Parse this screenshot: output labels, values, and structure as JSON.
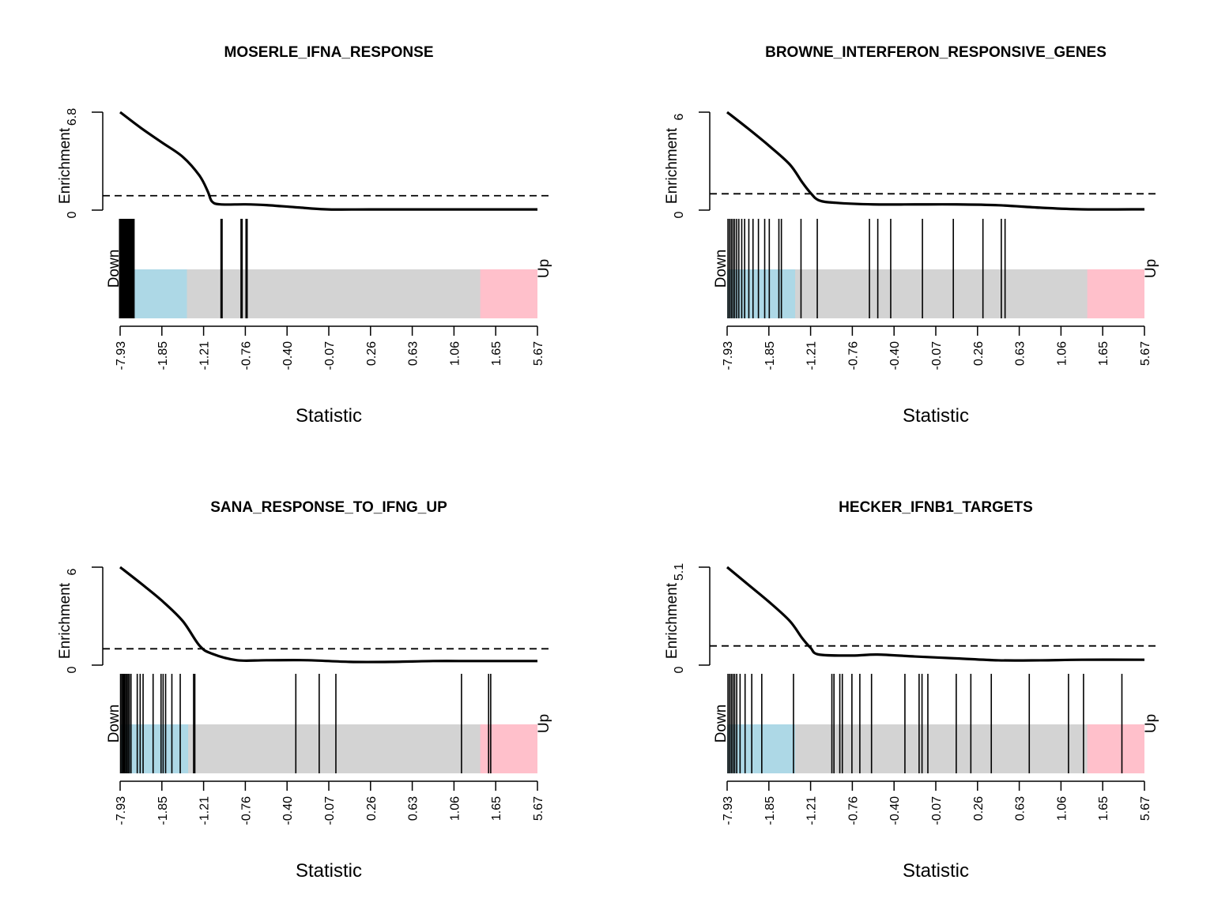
{
  "chart_data": [
    {
      "type": "line",
      "title": "MOSERLE_IFNA_RESPONSE",
      "xlabel": "Statistic",
      "ylabel": "Enrichment",
      "ytick_labels": [
        "0",
        "6.8"
      ],
      "ylim": [
        0,
        6.8
      ],
      "xtick_labels": [
        "-7.93",
        "-1.85",
        "-1.21",
        "-0.76",
        "-0.40",
        "-0.07",
        "0.26",
        "0.63",
        "1.06",
        "1.65",
        "5.67"
      ],
      "reference_line": 1.0,
      "down_label": "Down",
      "up_label": "Up",
      "down_region_end": 0.16,
      "up_region_start": 0.863,
      "curve": [
        [
          0.0,
          6.8
        ],
        [
          0.05,
          5.7
        ],
        [
          0.1,
          4.7
        ],
        [
          0.15,
          3.7
        ],
        [
          0.19,
          2.4
        ],
        [
          0.21,
          1.3
        ],
        [
          0.22,
          0.6
        ],
        [
          0.24,
          0.4
        ],
        [
          0.3,
          0.4
        ],
        [
          0.35,
          0.35
        ],
        [
          0.42,
          0.2
        ],
        [
          0.5,
          0.05
        ],
        [
          0.6,
          0.05
        ],
        [
          0.8,
          0.05
        ],
        [
          1.0,
          0.05
        ]
      ],
      "gene_positions": [
        0.0,
        0.004,
        0.008,
        0.012,
        0.016,
        0.02,
        0.024,
        0.028,
        0.032,
        0.243,
        0.291,
        0.303
      ],
      "heavy_barcode": true
    },
    {
      "type": "line",
      "title": "BROWNE_INTERFERON_RESPONSIVE_GENES",
      "xlabel": "Statistic",
      "ylabel": "Enrichment",
      "ytick_labels": [
        "0",
        "6"
      ],
      "ylim": [
        0,
        6
      ],
      "xtick_labels": [
        "-7.93",
        "-1.85",
        "-1.21",
        "-0.76",
        "-0.40",
        "-0.07",
        "0.26",
        "0.63",
        "1.06",
        "1.65",
        "5.67"
      ],
      "reference_line": 1.0,
      "down_label": "Down",
      "up_label": "Up",
      "down_region_end": 0.163,
      "up_region_start": 0.863,
      "curve": [
        [
          0.0,
          6.0
        ],
        [
          0.05,
          5.0
        ],
        [
          0.1,
          3.95
        ],
        [
          0.15,
          2.8
        ],
        [
          0.18,
          1.7
        ],
        [
          0.2,
          1.05
        ],
        [
          0.22,
          0.6
        ],
        [
          0.26,
          0.45
        ],
        [
          0.35,
          0.35
        ],
        [
          0.45,
          0.35
        ],
        [
          0.55,
          0.35
        ],
        [
          0.65,
          0.3
        ],
        [
          0.75,
          0.15
        ],
        [
          0.85,
          0.05
        ],
        [
          1.0,
          0.05
        ]
      ],
      "gene_positions": [
        0.002,
        0.006,
        0.01,
        0.014,
        0.018,
        0.023,
        0.028,
        0.035,
        0.042,
        0.052,
        0.062,
        0.075,
        0.09,
        0.101,
        0.124,
        0.13,
        0.177,
        0.216,
        0.341,
        0.361,
        0.392,
        0.468,
        0.542,
        0.613,
        0.657,
        0.666
      ],
      "heavy_barcode": false
    },
    {
      "type": "line",
      "title": "SANA_RESPONSE_TO_IFNG_UP",
      "xlabel": "Statistic",
      "ylabel": "Enrichment",
      "ytick_labels": [
        "0",
        "6"
      ],
      "ylim": [
        0,
        6
      ],
      "xtick_labels": [
        "-7.93",
        "-1.85",
        "-1.21",
        "-0.76",
        "-0.40",
        "-0.07",
        "0.26",
        "0.63",
        "1.06",
        "1.65",
        "5.67"
      ],
      "reference_line": 1.0,
      "down_label": "Down",
      "up_label": "Up",
      "down_region_end": 0.163,
      "up_region_start": 0.863,
      "curve": [
        [
          0.0,
          6.0
        ],
        [
          0.05,
          5.0
        ],
        [
          0.1,
          3.95
        ],
        [
          0.15,
          2.7
        ],
        [
          0.19,
          1.2
        ],
        [
          0.22,
          0.7
        ],
        [
          0.28,
          0.3
        ],
        [
          0.35,
          0.3
        ],
        [
          0.45,
          0.3
        ],
        [
          0.55,
          0.2
        ],
        [
          0.65,
          0.2
        ],
        [
          0.75,
          0.25
        ],
        [
          0.85,
          0.25
        ],
        [
          1.0,
          0.25
        ]
      ],
      "gene_positions": [
        0.001,
        0.004,
        0.007,
        0.01,
        0.013,
        0.016,
        0.019,
        0.022,
        0.026,
        0.041,
        0.048,
        0.055,
        0.079,
        0.098,
        0.103,
        0.109,
        0.124,
        0.144,
        0.176,
        0.179,
        0.421,
        0.477,
        0.517,
        0.818,
        0.883,
        0.888
      ],
      "heavy_barcode": false
    },
    {
      "type": "line",
      "title": "HECKER_IFNB1_TARGETS",
      "xlabel": "Statistic",
      "ylabel": "Enrichment",
      "ytick_labels": [
        "0",
        "5.1"
      ],
      "ylim": [
        0,
        5.1
      ],
      "xtick_labels": [
        "-7.93",
        "-1.85",
        "-1.21",
        "-0.76",
        "-0.40",
        "-0.07",
        "0.26",
        "0.63",
        "1.06",
        "1.65",
        "5.67"
      ],
      "reference_line": 1.0,
      "down_label": "Down",
      "up_label": "Up",
      "down_region_end": 0.163,
      "up_region_start": 0.863,
      "curve": [
        [
          0.0,
          5.1
        ],
        [
          0.05,
          4.2
        ],
        [
          0.1,
          3.3
        ],
        [
          0.15,
          2.3
        ],
        [
          0.18,
          1.4
        ],
        [
          0.2,
          0.9
        ],
        [
          0.22,
          0.55
        ],
        [
          0.3,
          0.5
        ],
        [
          0.36,
          0.55
        ],
        [
          0.45,
          0.45
        ],
        [
          0.55,
          0.35
        ],
        [
          0.65,
          0.25
        ],
        [
          0.75,
          0.25
        ],
        [
          0.85,
          0.28
        ],
        [
          1.0,
          0.28
        ]
      ],
      "gene_positions": [
        0.002,
        0.006,
        0.01,
        0.014,
        0.018,
        0.023,
        0.031,
        0.043,
        0.059,
        0.083,
        0.159,
        0.251,
        0.256,
        0.27,
        0.276,
        0.299,
        0.318,
        0.346,
        0.426,
        0.46,
        0.467,
        0.481,
        0.549,
        0.584,
        0.633,
        0.724,
        0.818,
        0.854,
        0.946
      ],
      "heavy_barcode": false
    }
  ]
}
